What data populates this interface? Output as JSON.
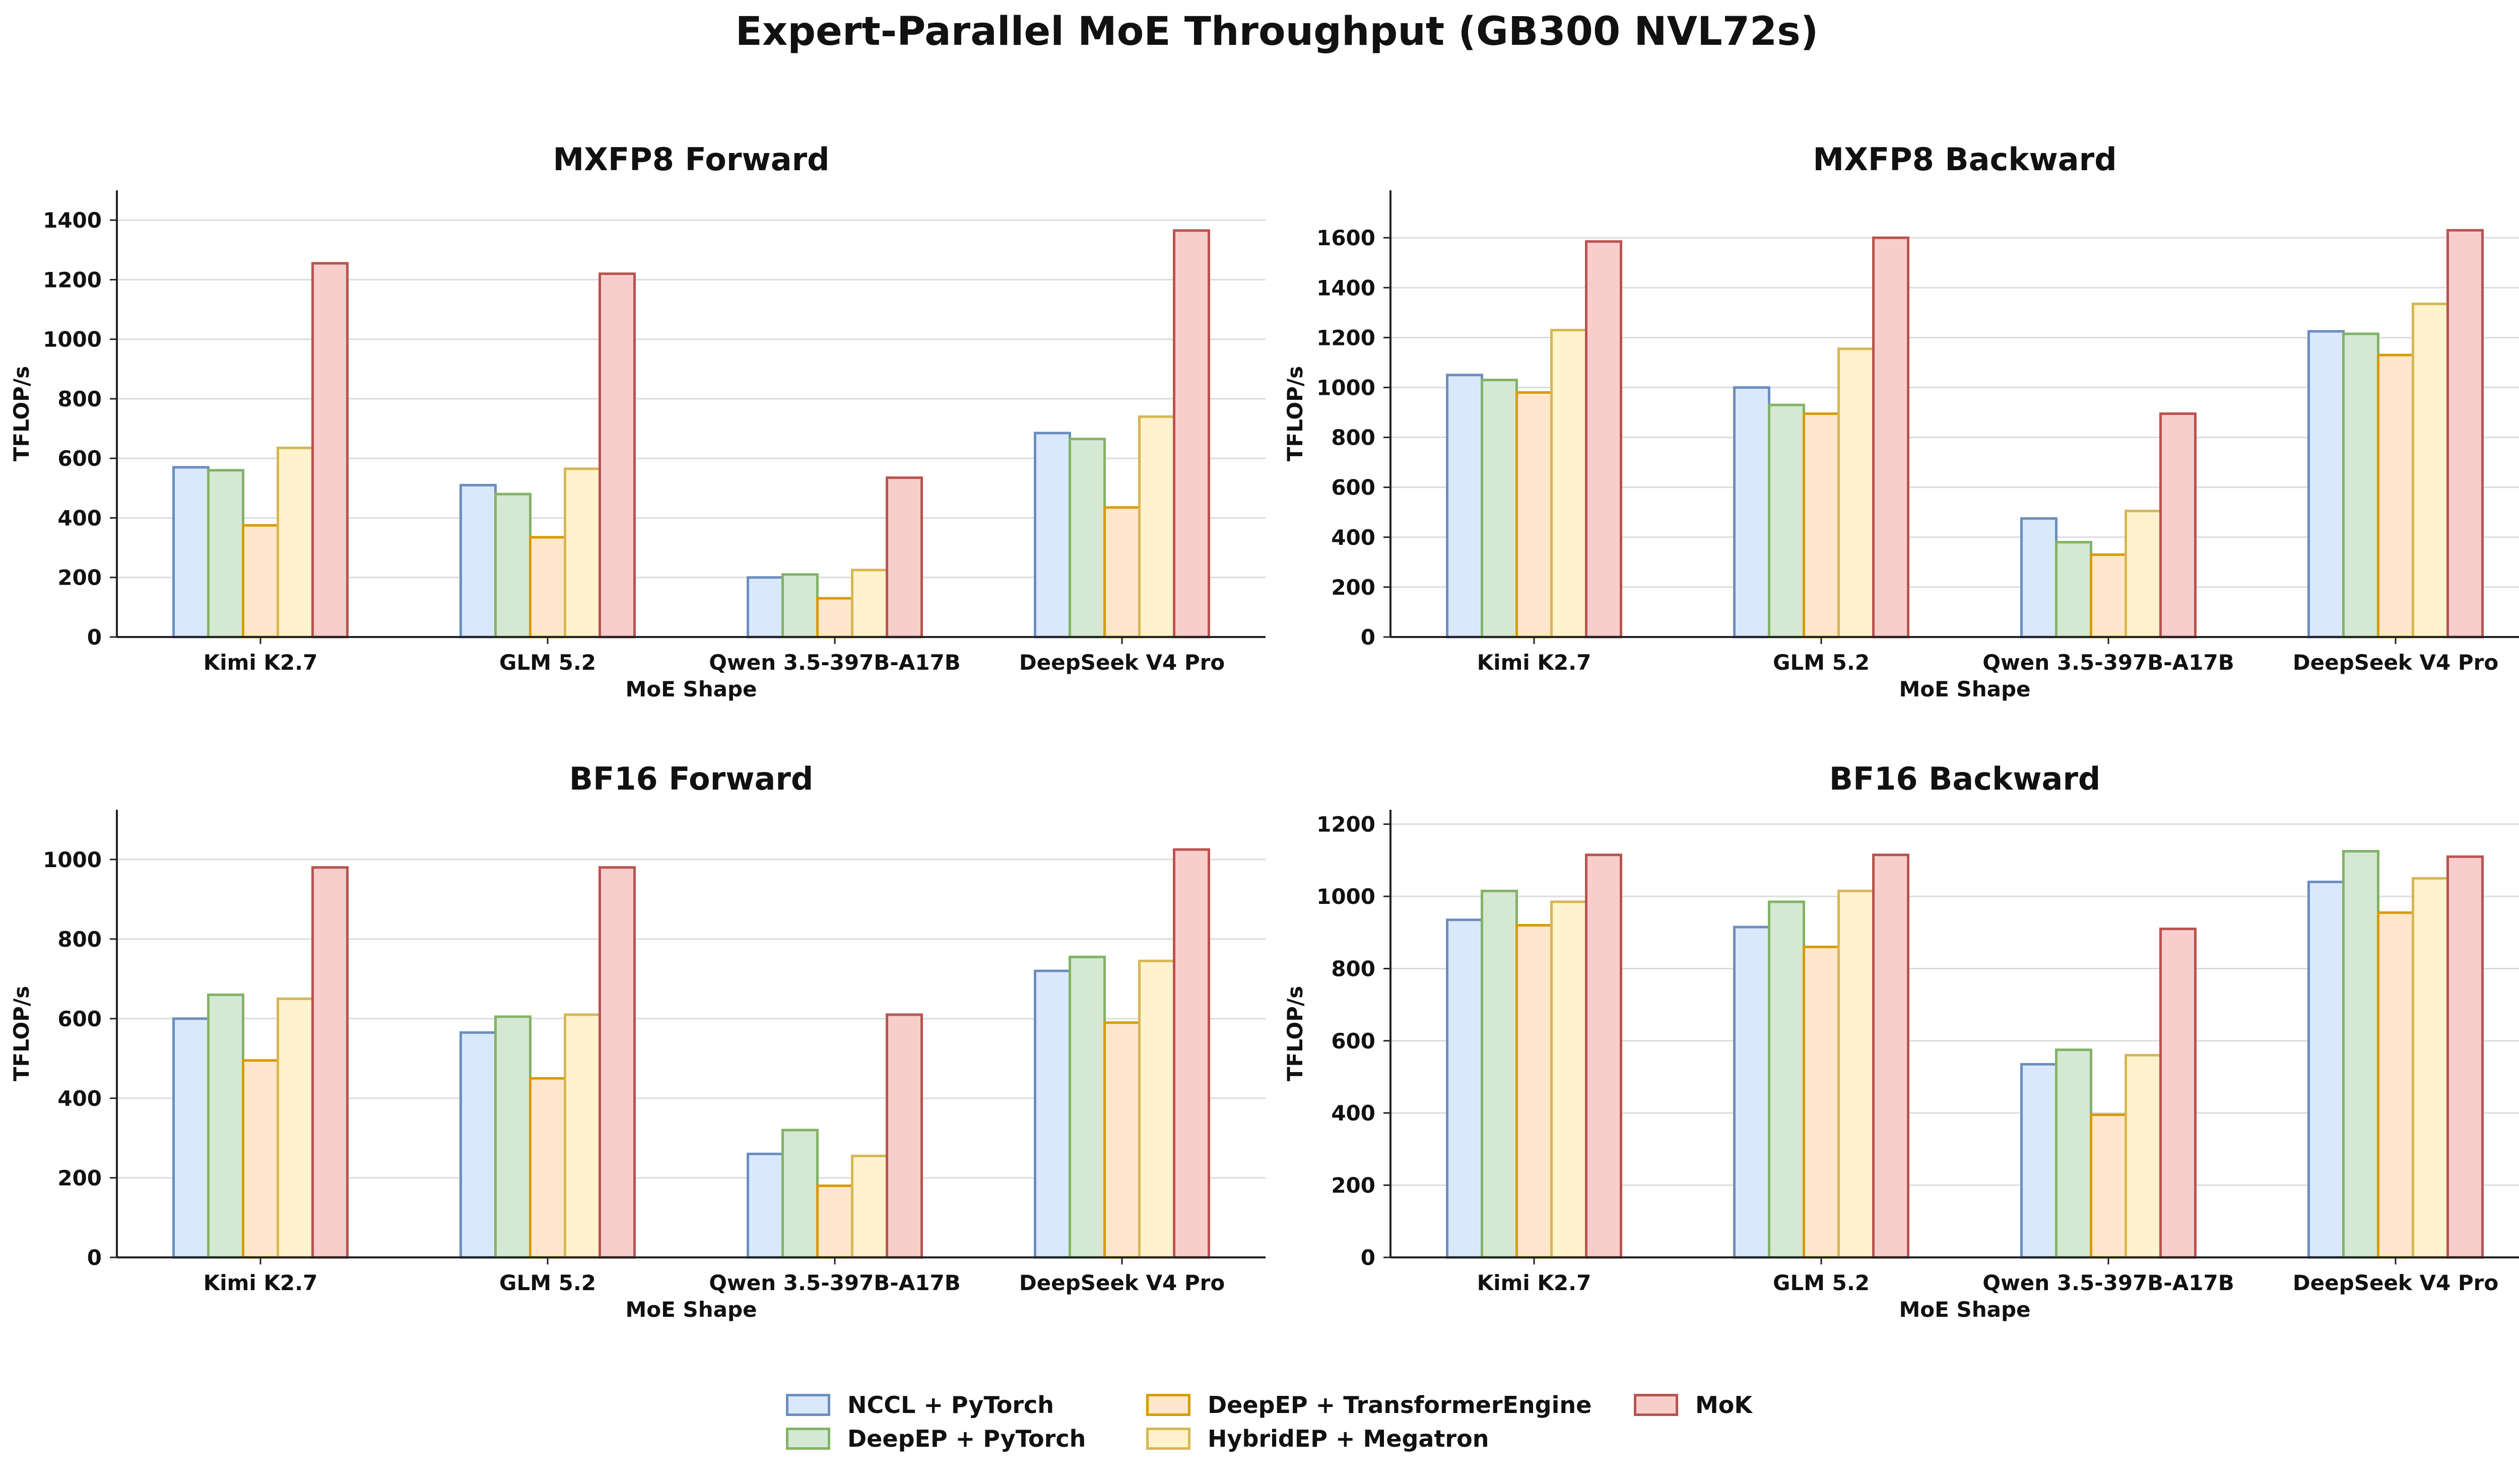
{
  "title": "Expert-Parallel MoE Throughput (GB300 NVL72s)",
  "series_styles": [
    {
      "name": "NCCL + PyTorch",
      "fill": "#dae8fc",
      "stroke": "#6c8ebf"
    },
    {
      "name": "DeepEP + PyTorch",
      "fill": "#d5e8d4",
      "stroke": "#82b366"
    },
    {
      "name": "DeepEP + TransformerEngine",
      "fill": "#ffe6cc",
      "stroke": "#d79b00"
    },
    {
      "name": "HybridEP + Megatron",
      "fill": "#fff2cc",
      "stroke": "#d6b656"
    },
    {
      "name": "MoK",
      "fill": "#f8cecc",
      "stroke": "#b85450"
    }
  ],
  "chart_data": [
    {
      "type": "bar",
      "title": "MXFP8 Forward",
      "xlabel": "MoE Shape",
      "ylabel": "TFLOP/s",
      "categories": [
        "Kimi K2.7",
        "GLM 5.2",
        "Qwen 3.5-397B-A17B",
        "DeepSeek V4 Pro"
      ],
      "ylim": [
        0,
        1500
      ],
      "yticks": [
        0,
        200,
        400,
        600,
        800,
        1000,
        1200,
        1400
      ],
      "grid": true,
      "series": [
        {
          "name": "NCCL + PyTorch",
          "values": [
            570,
            510,
            200,
            685
          ]
        },
        {
          "name": "DeepEP + PyTorch",
          "values": [
            560,
            480,
            210,
            665
          ]
        },
        {
          "name": "DeepEP + TransformerEngine",
          "values": [
            375,
            335,
            130,
            435
          ]
        },
        {
          "name": "HybridEP + Megatron",
          "values": [
            635,
            565,
            225,
            740
          ]
        },
        {
          "name": "MoK",
          "values": [
            1255,
            1220,
            535,
            1365
          ]
        }
      ]
    },
    {
      "type": "bar",
      "title": "MXFP8 Backward",
      "xlabel": "MoE Shape",
      "ylabel": "TFLOP/s",
      "categories": [
        "Kimi K2.7",
        "GLM 5.2",
        "Qwen 3.5-397B-A17B",
        "DeepSeek V4 Pro"
      ],
      "ylim": [
        0,
        1790
      ],
      "yticks": [
        0,
        200,
        400,
        600,
        800,
        1000,
        1200,
        1400,
        1600
      ],
      "grid": true,
      "series": [
        {
          "name": "NCCL + PyTorch",
          "values": [
            1050,
            1000,
            475,
            1225
          ]
        },
        {
          "name": "DeepEP + PyTorch",
          "values": [
            1030,
            930,
            380,
            1215
          ]
        },
        {
          "name": "DeepEP + TransformerEngine",
          "values": [
            980,
            895,
            330,
            1130
          ]
        },
        {
          "name": "HybridEP + Megatron",
          "values": [
            1230,
            1155,
            505,
            1335
          ]
        },
        {
          "name": "MoK",
          "values": [
            1585,
            1600,
            895,
            1630
          ]
        }
      ]
    },
    {
      "type": "bar",
      "title": "BF16 Forward",
      "xlabel": "MoE Shape",
      "ylabel": "TFLOP/s",
      "categories": [
        "Kimi K2.7",
        "GLM 5.2",
        "Qwen 3.5-397B-A17B",
        "DeepSeek V4 Pro"
      ],
      "ylim": [
        0,
        1125
      ],
      "yticks": [
        0,
        200,
        400,
        600,
        800,
        1000
      ],
      "grid": true,
      "series": [
        {
          "name": "NCCL + PyTorch",
          "values": [
            600,
            565,
            260,
            720
          ]
        },
        {
          "name": "DeepEP + PyTorch",
          "values": [
            660,
            605,
            320,
            755
          ]
        },
        {
          "name": "DeepEP + TransformerEngine",
          "values": [
            495,
            450,
            180,
            590
          ]
        },
        {
          "name": "HybridEP + Megatron",
          "values": [
            650,
            610,
            255,
            745
          ]
        },
        {
          "name": "MoK",
          "values": [
            980,
            980,
            610,
            1025
          ]
        }
      ]
    },
    {
      "type": "bar",
      "title": "BF16 Backward",
      "xlabel": "MoE Shape",
      "ylabel": "TFLOP/s",
      "categories": [
        "Kimi K2.7",
        "GLM 5.2",
        "Qwen 3.5-397B-A17B",
        "DeepSeek V4 Pro"
      ],
      "ylim": [
        0,
        1240
      ],
      "yticks": [
        0,
        200,
        400,
        600,
        800,
        1000,
        1200
      ],
      "grid": true,
      "series": [
        {
          "name": "NCCL + PyTorch",
          "values": [
            935,
            915,
            535,
            1040
          ]
        },
        {
          "name": "DeepEP + PyTorch",
          "values": [
            1015,
            985,
            575,
            1125
          ]
        },
        {
          "name": "DeepEP + TransformerEngine",
          "values": [
            920,
            860,
            395,
            955
          ]
        },
        {
          "name": "HybridEP + Megatron",
          "values": [
            985,
            1015,
            560,
            1050
          ]
        },
        {
          "name": "MoK",
          "values": [
            1115,
            1115,
            910,
            1110
          ]
        }
      ]
    }
  ],
  "legend": {
    "placement": "bottom-center",
    "entries": [
      "NCCL + PyTorch",
      "DeepEP + PyTorch",
      "DeepEP + TransformerEngine",
      "HybridEP + Megatron",
      "MoK"
    ]
  }
}
